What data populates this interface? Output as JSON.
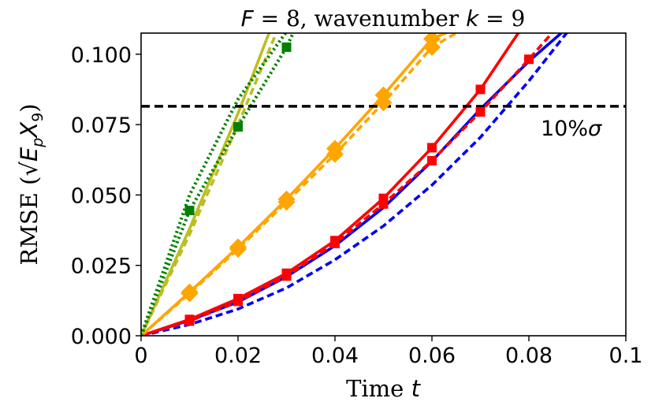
{
  "chart_data": {
    "type": "line",
    "title": "F = 8, wavenumber k = 9",
    "title_parts": {
      "var": "F",
      "eq": " = 8, wavenumber ",
      "k": "k",
      "eq2": " = 9"
    },
    "xlabel": "Time t",
    "xlabel_parts": {
      "text": "Time ",
      "var": "t"
    },
    "ylabel": "RMSE (√E_p X̂_9)",
    "ylabel_parts": {
      "text": "RMSE (",
      "var": "E",
      "sub": "p",
      "var2": "X",
      "sub2": "9",
      "close": ")"
    },
    "xlim": [
      0,
      0.1
    ],
    "ylim": [
      0,
      0.1075
    ],
    "xticks": [
      0,
      0.02,
      0.04,
      0.06,
      0.08,
      0.1
    ],
    "xtick_labels": [
      "0",
      "0.02",
      "0.04",
      "0.06",
      "0.08",
      "0.1"
    ],
    "yticks": [
      0,
      0.025,
      0.05,
      0.075,
      0.1
    ],
    "ytick_labels": [
      "0.000",
      "0.025",
      "0.050",
      "0.075",
      "0.100"
    ],
    "threshold": {
      "value": 0.0815,
      "label": "10%σ",
      "label_parts": {
        "text": "10%",
        "var": "σ"
      },
      "color": "#000000"
    },
    "series": [
      {
        "name": "blue-solid",
        "color": "#0000ee",
        "style": "solid",
        "marker": "none",
        "x": [
          0,
          0.01,
          0.02,
          0.03,
          0.04,
          0.05,
          0.06,
          0.07,
          0.08,
          0.087
        ],
        "y": [
          0,
          0.0055,
          0.012,
          0.021,
          0.032,
          0.0455,
          0.062,
          0.0805,
          0.0975,
          0.108
        ]
      },
      {
        "name": "blue-dashed",
        "color": "#0000ee",
        "style": "dashed",
        "marker": "none",
        "x": [
          0,
          0.01,
          0.02,
          0.03,
          0.04,
          0.05,
          0.06,
          0.07,
          0.08,
          0.088
        ],
        "y": [
          0,
          0.004,
          0.0095,
          0.017,
          0.027,
          0.039,
          0.0535,
          0.0705,
          0.0905,
          0.108
        ]
      },
      {
        "name": "red-solid",
        "color": "#ff0000",
        "style": "solid",
        "marker": "square",
        "x": [
          0,
          0.01,
          0.02,
          0.03,
          0.04,
          0.05,
          0.06,
          0.07,
          0.078
        ],
        "y": [
          0,
          0.0058,
          0.0132,
          0.0222,
          0.0338,
          0.0488,
          0.0668,
          0.0875,
          0.108
        ]
      },
      {
        "name": "red-dashed",
        "color": "#ff0000",
        "style": "dashed",
        "marker": "square",
        "x": [
          0,
          0.01,
          0.02,
          0.03,
          0.04,
          0.05,
          0.06,
          0.07,
          0.08,
          0.085
        ],
        "y": [
          0,
          0.0052,
          0.0122,
          0.0212,
          0.0328,
          0.0468,
          0.0622,
          0.0795,
          0.0982,
          0.108
        ]
      },
      {
        "name": "orange-solid",
        "color": "#ffa500",
        "style": "solid",
        "marker": "diamond",
        "x": [
          0,
          0.01,
          0.02,
          0.03,
          0.04,
          0.05,
          0.06,
          0.0635
        ],
        "y": [
          0,
          0.0155,
          0.0315,
          0.0485,
          0.0665,
          0.0855,
          0.1055,
          0.108
        ]
      },
      {
        "name": "orange-dashed",
        "color": "#ffa500",
        "style": "dashed",
        "marker": "diamond",
        "x": [
          0,
          0.01,
          0.02,
          0.03,
          0.04,
          0.05,
          0.06,
          0.0655
        ],
        "y": [
          0,
          0.015,
          0.0308,
          0.0475,
          0.0645,
          0.0828,
          0.1025,
          0.108
        ]
      },
      {
        "name": "olive-solid",
        "color": "#bcbd22",
        "style": "solid",
        "marker": "none",
        "x": [
          0,
          0.01,
          0.02,
          0.0265
        ],
        "y": [
          0,
          0.038,
          0.079,
          0.108
        ]
      },
      {
        "name": "olive-dashed",
        "color": "#bcbd22",
        "style": "dashed",
        "marker": "none",
        "x": [
          0,
          0.01,
          0.02,
          0.028
        ],
        "y": [
          0,
          0.036,
          0.075,
          0.108
        ]
      },
      {
        "name": "green-dotted-a",
        "color": "#008000",
        "style": "dotted",
        "marker": "square",
        "x": [
          0,
          0.01,
          0.02,
          0.03,
          0.0315
        ],
        "y": [
          0,
          0.0445,
          0.0742,
          0.1025,
          0.108
        ]
      },
      {
        "name": "green-dotted-b",
        "color": "#008000",
        "style": "dotted",
        "marker": "none",
        "x": [
          0,
          0.01,
          0.02,
          0.03
        ],
        "y": [
          0,
          0.05,
          0.084,
          0.108
        ]
      }
    ]
  }
}
